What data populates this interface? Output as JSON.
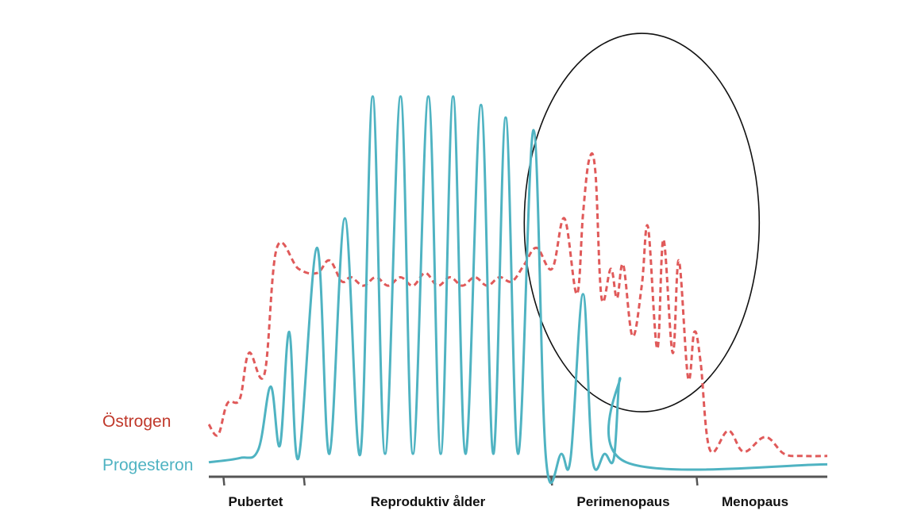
{
  "chart_data": {
    "type": "line",
    "title": "",
    "xlabel": "",
    "ylabel": "",
    "x_range": [
      0,
      100
    ],
    "y_range": [
      0,
      100
    ],
    "grid": false,
    "legend": "left, next to line starts",
    "colors": {
      "ostrogen": "#e05a5a",
      "progesteron": "#4fb3c2",
      "axis": "#555555",
      "ellipse": "#111111",
      "text": "#111111"
    },
    "phases": [
      {
        "label": "Pubertet",
        "start": 0,
        "end": 15.5
      },
      {
        "label": "Reproduktiv ålder",
        "start": 15.5,
        "end": 55.5
      },
      {
        "label": "Perimenopaus",
        "start": 55.5,
        "end": 79
      },
      {
        "label": "Menopaus",
        "start": 79,
        "end": 100
      }
    ],
    "phase_ticks": [
      2.5,
      15.5,
      55.5,
      79
    ],
    "annotation": {
      "type": "ellipse",
      "note": "circle around perimenopause fluctuations",
      "center": [
        70,
        58
      ],
      "radius": [
        19,
        45
      ]
    },
    "series": [
      {
        "name": "Östrogen",
        "style": "dashed",
        "points": [
          [
            0,
            10
          ],
          [
            1.5,
            7.5
          ],
          [
            3,
            15
          ],
          [
            5,
            16
          ],
          [
            6.5,
            27
          ],
          [
            9,
            22
          ],
          [
            11,
            52
          ],
          [
            14.5,
            47
          ],
          [
            17.5,
            46
          ],
          [
            19.5,
            49
          ],
          [
            21.5,
            44
          ],
          [
            23,
            45
          ],
          [
            25,
            43
          ],
          [
            27,
            45
          ],
          [
            29,
            43
          ],
          [
            31,
            45
          ],
          [
            33,
            43
          ],
          [
            35,
            46
          ],
          [
            37,
            43
          ],
          [
            39,
            45
          ],
          [
            41,
            43
          ],
          [
            43,
            45
          ],
          [
            45,
            43
          ],
          [
            47,
            45
          ],
          [
            49,
            44
          ],
          [
            51,
            48
          ],
          [
            53,
            52
          ],
          [
            55.5,
            47
          ],
          [
            57.5,
            59
          ],
          [
            59.5,
            41
          ],
          [
            60.5,
            60
          ],
          [
            61.5,
            73
          ],
          [
            62.5,
            70
          ],
          [
            63.5,
            40
          ],
          [
            65,
            47
          ],
          [
            66,
            40
          ],
          [
            67,
            48
          ],
          [
            68.5,
            31
          ],
          [
            70,
            43
          ],
          [
            71,
            57
          ],
          [
            72.5,
            28
          ],
          [
            73.5,
            54
          ],
          [
            75,
            27
          ],
          [
            76,
            49
          ],
          [
            77.5,
            21
          ],
          [
            78.5,
            32
          ],
          [
            79.5,
            25
          ],
          [
            81,
            4
          ],
          [
            84,
            8.5
          ],
          [
            86.5,
            3.5
          ],
          [
            90,
            7
          ],
          [
            93,
            3
          ],
          [
            96,
            2.5
          ],
          [
            100,
            2.5
          ]
        ]
      },
      {
        "name": "Progesteron",
        "style": "solid",
        "points": [
          [
            0,
            1
          ],
          [
            5,
            2
          ],
          [
            8,
            4
          ],
          [
            10,
            19
          ],
          [
            11.5,
            5
          ],
          [
            13,
            32
          ],
          [
            14.5,
            2
          ],
          [
            17.5,
            52
          ],
          [
            19.5,
            3
          ],
          [
            22,
            59
          ],
          [
            24.5,
            3
          ],
          [
            26.5,
            88
          ],
          [
            28.5,
            3
          ],
          [
            31,
            88
          ],
          [
            33,
            3
          ],
          [
            35.5,
            88
          ],
          [
            37.5,
            3
          ],
          [
            39.5,
            88
          ],
          [
            41.5,
            3
          ],
          [
            44,
            86
          ],
          [
            46,
            3
          ],
          [
            48,
            83
          ],
          [
            50,
            3
          ],
          [
            52.5,
            80
          ],
          [
            54.5,
            2
          ],
          [
            57,
            3
          ],
          [
            58.5,
            2
          ],
          [
            60.5,
            41
          ],
          [
            62,
            2
          ],
          [
            64,
            3
          ],
          [
            65.5,
            2
          ],
          [
            66.5,
            21
          ],
          [
            67.5,
            1
          ],
          [
            100,
            0.5
          ]
        ]
      }
    ],
    "legend_labels": {
      "ostrogen": "Östrogen",
      "progesteron": "Progesteron"
    }
  }
}
